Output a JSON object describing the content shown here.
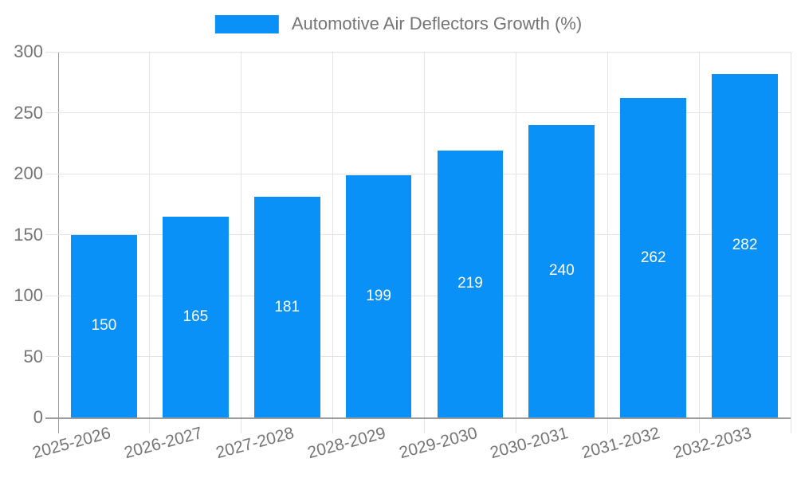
{
  "chart_data": {
    "type": "bar",
    "title": "Automotive Air Deflectors Growth (%)",
    "categories": [
      "2025-2026",
      "2026-2027",
      "2027-2028",
      "2028-2029",
      "2029-2030",
      "2030-2031",
      "2031-2032",
      "2032-2033"
    ],
    "values": [
      150,
      165,
      181,
      199,
      219,
      240,
      262,
      282
    ],
    "xlabel": "",
    "ylabel": "",
    "ylim": [
      0,
      300
    ],
    "yticks": [
      0,
      50,
      100,
      150,
      200,
      250,
      300
    ],
    "grid": true,
    "legend_position": "top-center",
    "colors": {
      "bar": "#0a91f7",
      "value_label": "#ffffff",
      "axis_text": "#757575",
      "gridline": "#e4e4e4",
      "axis_line": "#9b9b9b"
    }
  }
}
